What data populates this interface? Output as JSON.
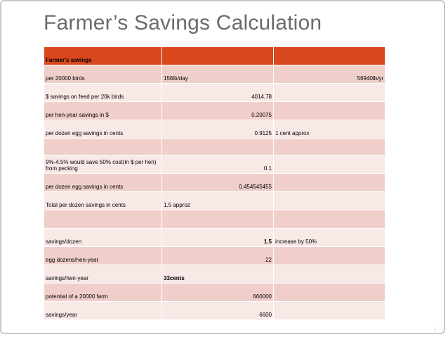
{
  "slide": {
    "title": "Farmer’s Savings Calculation"
  },
  "table": {
    "header": [
      "Farmer's savings",
      "",
      ""
    ],
    "rows": [
      {
        "c1": "per 20000 birds",
        "c2": "156lb/day",
        "c3": "56940lb/yr"
      },
      {
        "c1": "$ savings on feed per 20k birds",
        "c2": "4014.78",
        "c3": ""
      },
      {
        "c1": "per hen-year savings in $",
        "c2": "0.20075",
        "c3": ""
      },
      {
        "c1": "per dozen egg savings in cents",
        "c2": "0.9125",
        "c3": "1 cent approx"
      },
      {
        "c1": "",
        "c2": "",
        "c3": ""
      },
      {
        "c1": "9%-4.5% would save 50% cost(in $ per hen) from pecking",
        "c2": "0.1",
        "c3": ""
      },
      {
        "c1": "per dozen egg savings in cents",
        "c2": "0.454545455",
        "c3": ""
      },
      {
        "c1": "Total per dozen savings in cents",
        "c2": "1.5 approz",
        "c3": ""
      },
      {
        "c1": "",
        "c2": "",
        "c3": ""
      },
      {
        "c1": "savings/dozen",
        "c2": "1.5",
        "c3": "increase by 50%"
      },
      {
        "c1": "egg dozens/hen-year",
        "c2": "22",
        "c3": ""
      },
      {
        "c1": "savings/hen-year",
        "c2": "33cents",
        "c3": ""
      },
      {
        "c1": "potential of a 20000 farm",
        "c2": "660000",
        "c3": ""
      },
      {
        "c1": "savings/year",
        "c2": "6600",
        "c3": ""
      }
    ]
  }
}
